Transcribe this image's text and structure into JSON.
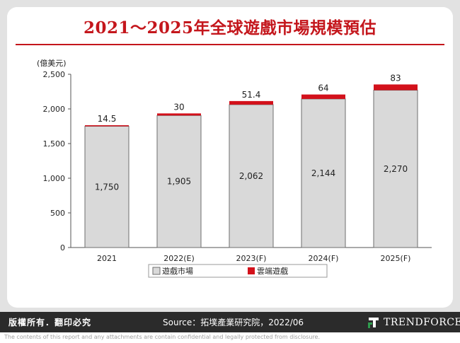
{
  "header": {
    "title": "2021～2025年全球遊戲市場規模預估"
  },
  "chart_data": {
    "type": "bar",
    "stacked": true,
    "unit_label": "(億美元)",
    "categories": [
      "2021",
      "2022(E)",
      "2023(F)",
      "2024(F)",
      "2025(F)"
    ],
    "series": [
      {
        "name": "遊戲市場",
        "values": [
          1750,
          1905,
          2062,
          2144,
          2270
        ],
        "labels": [
          "1,750",
          "1,905",
          "2,062",
          "2,144",
          "2,270"
        ],
        "color": "#d9d9d9"
      },
      {
        "name": "雲端遊戲",
        "values": [
          14.5,
          30,
          51.4,
          64,
          83
        ],
        "labels": [
          "14.5",
          "30",
          "51.4",
          "64",
          "83"
        ],
        "color": "#d3111b"
      }
    ],
    "ylim": [
      0,
      2500
    ],
    "yticks": [
      0,
      500,
      1000,
      1500,
      2000,
      2500
    ],
    "ytick_labels": [
      "0",
      "500",
      "1,000",
      "1,500",
      "2,000",
      "2,500"
    ],
    "grid": false,
    "legend_position": "bottom"
  },
  "footer": {
    "copyright": "版權所有．翻印必究",
    "source": "Source：拓墣產業研究院，2022/06",
    "brand": "TRENDFORCE"
  },
  "disclaimer": "The contents of this report and any attachments are contain confidential and legally protected from disclosure.",
  "colors": {
    "title": "#c4161c",
    "footer_bg": "#2b2b2b",
    "frame_bg": "#e2e2e2"
  }
}
